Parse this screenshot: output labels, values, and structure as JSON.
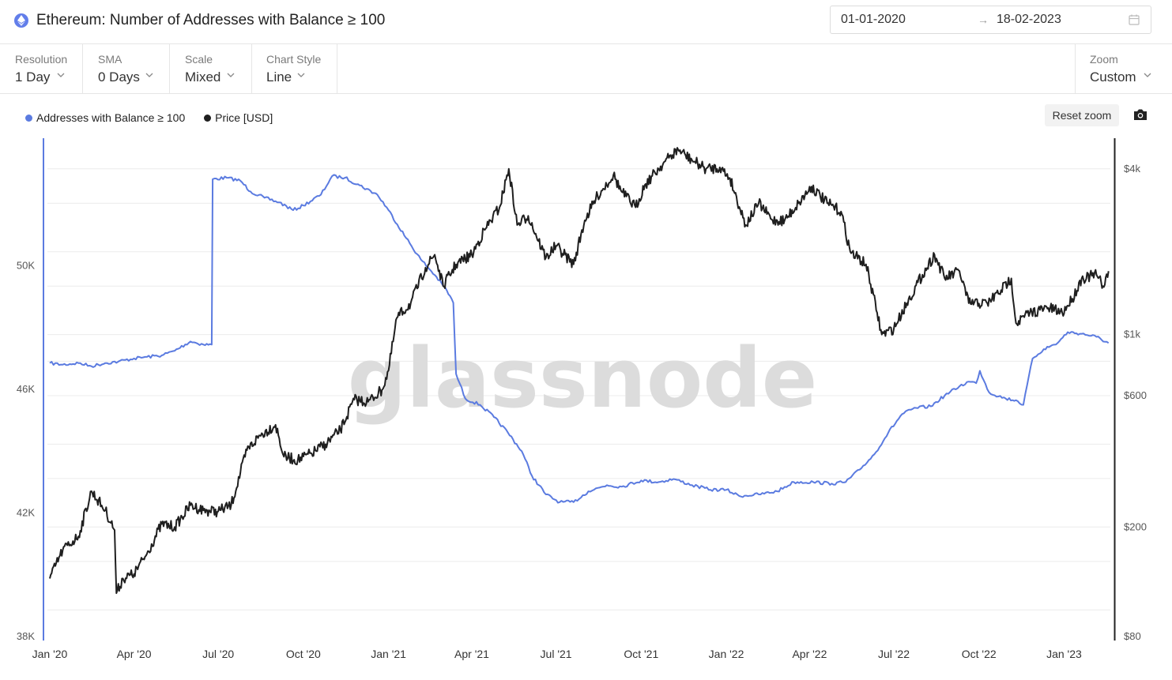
{
  "header": {
    "title": "Ethereum: Number of Addresses with Balance ≥ 100",
    "date_start": "01-01-2020",
    "date_end": "18-02-2023"
  },
  "controls": {
    "resolution": {
      "label": "Resolution",
      "value": "1 Day"
    },
    "sma": {
      "label": "SMA",
      "value": "0 Days"
    },
    "scale": {
      "label": "Scale",
      "value": "Mixed"
    },
    "chart_style": {
      "label": "Chart Style",
      "value": "Line"
    },
    "zoom": {
      "label": "Zoom",
      "value": "Custom"
    }
  },
  "toolbar": {
    "reset_zoom": "Reset zoom"
  },
  "colors": {
    "addresses": "#5b7be0",
    "price": "#1f1f1f",
    "grid": "#ececec"
  },
  "watermark": "glassnode",
  "chart_data": {
    "type": "line",
    "legend": [
      "Addresses with Balance ≥ 100",
      "Price [USD]"
    ],
    "x_tick_labels": [
      "Jan '20",
      "Apr '20",
      "Jul '20",
      "Oct '20",
      "Jan '21",
      "Apr '21",
      "Jul '21",
      "Oct '21",
      "Jan '22",
      "Apr '22",
      "Jul '22",
      "Oct '22",
      "Jan '23"
    ],
    "left_axis": {
      "scale": "linear",
      "range": [
        38000,
        54000
      ],
      "tick_labels": [
        "38K",
        "42K",
        "46K",
        "50K"
      ],
      "tick_values": [
        38000,
        42000,
        46000,
        50000
      ]
    },
    "right_axis": {
      "scale": "log",
      "range": [
        80,
        5000
      ],
      "tick_labels": [
        "$80",
        "$200",
        "$600",
        "$1k",
        "$4k"
      ],
      "tick_values": [
        80,
        200,
        600,
        1000,
        4000
      ]
    },
    "series": [
      {
        "name": "Addresses with Balance ≥ 100",
        "axis": "left",
        "points": [
          [
            "2020-01-01",
            46850
          ],
          [
            "2020-01-15",
            46800
          ],
          [
            "2020-02-01",
            46850
          ],
          [
            "2020-02-15",
            46750
          ],
          [
            "2020-03-01",
            46850
          ],
          [
            "2020-03-15",
            46900
          ],
          [
            "2020-04-01",
            47000
          ],
          [
            "2020-04-15",
            47050
          ],
          [
            "2020-05-01",
            47100
          ],
          [
            "2020-05-15",
            47250
          ],
          [
            "2020-06-01",
            47550
          ],
          [
            "2020-06-15",
            47450
          ],
          [
            "2020-06-24",
            47450
          ],
          [
            "2020-06-25",
            52800
          ],
          [
            "2020-07-10",
            52850
          ],
          [
            "2020-07-25",
            52750
          ],
          [
            "2020-08-05",
            52400
          ],
          [
            "2020-08-20",
            52200
          ],
          [
            "2020-09-05",
            52050
          ],
          [
            "2020-09-20",
            51800
          ],
          [
            "2020-10-01",
            51950
          ],
          [
            "2020-10-20",
            52300
          ],
          [
            "2020-11-01",
            52900
          ],
          [
            "2020-11-15",
            52850
          ],
          [
            "2020-12-01",
            52600
          ],
          [
            "2020-12-20",
            52300
          ],
          [
            "2021-01-01",
            51800
          ],
          [
            "2021-01-20",
            50900
          ],
          [
            "2021-02-05",
            50200
          ],
          [
            "2021-02-20",
            49700
          ],
          [
            "2021-03-05",
            49200
          ],
          [
            "2021-03-12",
            48800
          ],
          [
            "2021-03-15",
            46500
          ],
          [
            "2021-03-25",
            45700
          ],
          [
            "2021-04-10",
            45500
          ],
          [
            "2021-04-25",
            45100
          ],
          [
            "2021-05-10",
            44600
          ],
          [
            "2021-05-25",
            44000
          ],
          [
            "2021-06-05",
            43200
          ],
          [
            "2021-06-20",
            42600
          ],
          [
            "2021-07-05",
            42350
          ],
          [
            "2021-07-20",
            42350
          ],
          [
            "2021-08-05",
            42700
          ],
          [
            "2021-08-25",
            42900
          ],
          [
            "2021-09-10",
            42850
          ],
          [
            "2021-10-01",
            43050
          ],
          [
            "2021-10-20",
            43000
          ],
          [
            "2021-11-05",
            43100
          ],
          [
            "2021-11-25",
            42900
          ],
          [
            "2021-12-15",
            42750
          ],
          [
            "2022-01-01",
            42750
          ],
          [
            "2022-01-15",
            42550
          ],
          [
            "2022-02-05",
            42600
          ],
          [
            "2022-02-25",
            42700
          ],
          [
            "2022-03-15",
            43000
          ],
          [
            "2022-04-05",
            43000
          ],
          [
            "2022-04-25",
            42950
          ],
          [
            "2022-05-10",
            43000
          ],
          [
            "2022-05-25",
            43400
          ],
          [
            "2022-06-10",
            43900
          ],
          [
            "2022-06-25",
            44600
          ],
          [
            "2022-07-10",
            45200
          ],
          [
            "2022-07-25",
            45400
          ],
          [
            "2022-08-10",
            45450
          ],
          [
            "2022-08-25",
            45800
          ],
          [
            "2022-09-10",
            46100
          ],
          [
            "2022-09-20",
            46250
          ],
          [
            "2022-09-28",
            46200
          ],
          [
            "2022-10-02",
            46600
          ],
          [
            "2022-10-12",
            45900
          ],
          [
            "2022-10-30",
            45700
          ],
          [
            "2022-11-10",
            45650
          ],
          [
            "2022-11-18",
            45500
          ],
          [
            "2022-11-28",
            47000
          ],
          [
            "2022-12-10",
            47300
          ],
          [
            "2022-12-25",
            47500
          ],
          [
            "2023-01-05",
            47850
          ],
          [
            "2023-01-20",
            47800
          ],
          [
            "2023-02-05",
            47700
          ],
          [
            "2023-02-18",
            47500
          ]
        ]
      },
      {
        "name": "Price [USD]",
        "axis": "right",
        "points": [
          [
            "2020-01-01",
            130
          ],
          [
            "2020-01-15",
            165
          ],
          [
            "2020-02-01",
            185
          ],
          [
            "2020-02-15",
            270
          ],
          [
            "2020-03-01",
            230
          ],
          [
            "2020-03-11",
            195
          ],
          [
            "2020-03-13",
            115
          ],
          [
            "2020-03-20",
            130
          ],
          [
            "2020-04-01",
            135
          ],
          [
            "2020-04-15",
            160
          ],
          [
            "2020-05-01",
            205
          ],
          [
            "2020-05-15",
            200
          ],
          [
            "2020-06-01",
            240
          ],
          [
            "2020-06-15",
            230
          ],
          [
            "2020-07-01",
            228
          ],
          [
            "2020-07-15",
            240
          ],
          [
            "2020-08-01",
            380
          ],
          [
            "2020-08-15",
            430
          ],
          [
            "2020-09-01",
            470
          ],
          [
            "2020-09-10",
            360
          ],
          [
            "2020-09-25",
            350
          ],
          [
            "2020-10-10",
            370
          ],
          [
            "2020-10-25",
            400
          ],
          [
            "2020-11-10",
            450
          ],
          [
            "2020-11-25",
            580
          ],
          [
            "2020-12-10",
            570
          ],
          [
            "2020-12-25",
            630
          ],
          [
            "2021-01-01",
            740
          ],
          [
            "2021-01-10",
            1150
          ],
          [
            "2021-01-25",
            1300
          ],
          [
            "2021-02-10",
            1750
          ],
          [
            "2021-02-20",
            1950
          ],
          [
            "2021-03-01",
            1500
          ],
          [
            "2021-03-15",
            1800
          ],
          [
            "2021-04-01",
            1950
          ],
          [
            "2021-04-15",
            2400
          ],
          [
            "2021-05-01",
            2900
          ],
          [
            "2021-05-11",
            4000
          ],
          [
            "2021-05-20",
            2500
          ],
          [
            "2021-06-01",
            2700
          ],
          [
            "2021-06-20",
            1900
          ],
          [
            "2021-07-01",
            2100
          ],
          [
            "2021-07-20",
            1800
          ],
          [
            "2021-08-01",
            2600
          ],
          [
            "2021-08-15",
            3200
          ],
          [
            "2021-09-01",
            3800
          ],
          [
            "2021-09-10",
            3300
          ],
          [
            "2021-09-25",
            2900
          ],
          [
            "2021-10-05",
            3500
          ],
          [
            "2021-10-25",
            4200
          ],
          [
            "2021-11-10",
            4700
          ],
          [
            "2021-11-25",
            4300
          ],
          [
            "2021-12-10",
            4000
          ],
          [
            "2021-12-25",
            4050
          ],
          [
            "2022-01-05",
            3700
          ],
          [
            "2022-01-22",
            2500
          ],
          [
            "2022-02-05",
            3000
          ],
          [
            "2022-02-20",
            2600
          ],
          [
            "2022-03-05",
            2600
          ],
          [
            "2022-03-20",
            3000
          ],
          [
            "2022-04-03",
            3450
          ],
          [
            "2022-04-20",
            3000
          ],
          [
            "2022-05-05",
            2800
          ],
          [
            "2022-05-15",
            2000
          ],
          [
            "2022-06-01",
            1800
          ],
          [
            "2022-06-13",
            1200
          ],
          [
            "2022-06-18",
            1000
          ],
          [
            "2022-07-01",
            1050
          ],
          [
            "2022-07-15",
            1300
          ],
          [
            "2022-08-01",
            1650
          ],
          [
            "2022-08-14",
            1950
          ],
          [
            "2022-08-25",
            1600
          ],
          [
            "2022-09-10",
            1700
          ],
          [
            "2022-09-20",
            1300
          ],
          [
            "2022-10-10",
            1300
          ],
          [
            "2022-10-25",
            1450
          ],
          [
            "2022-11-05",
            1600
          ],
          [
            "2022-11-10",
            1100
          ],
          [
            "2022-11-25",
            1200
          ],
          [
            "2022-12-15",
            1250
          ],
          [
            "2022-12-30",
            1200
          ],
          [
            "2023-01-10",
            1350
          ],
          [
            "2023-01-20",
            1600
          ],
          [
            "2023-02-05",
            1650
          ],
          [
            "2023-02-12",
            1500
          ],
          [
            "2023-02-18",
            1700
          ]
        ]
      }
    ]
  }
}
